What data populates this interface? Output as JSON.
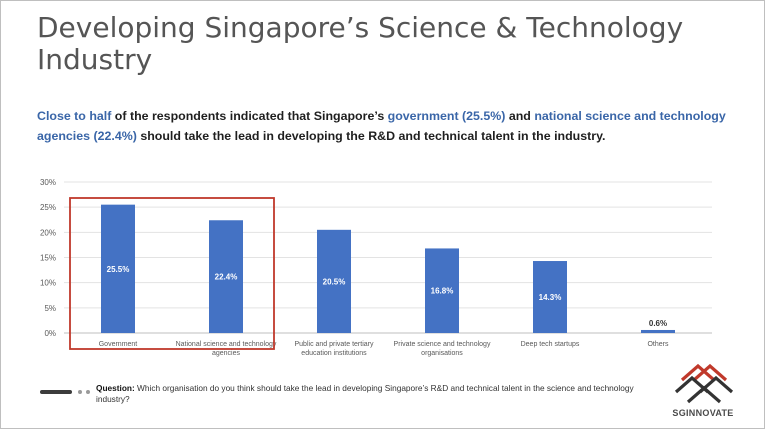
{
  "slide": {
    "title": "Developing Singapore’s Science & Technology Industry",
    "summary": {
      "part1": "Close to half",
      "part2": " of the respondents indicated that Singapore’s ",
      "part3": "government (25.5%)",
      "part4": " and ",
      "part5": "national science and technology agencies (22.4%)",
      "part6": " should take the lead in developing the R&D and technical talent in the industry."
    },
    "footer": {
      "question_label": "Question:",
      "question_text": " Which organisation do you think should take the lead in developing Singapore’s R&D and technical talent in the science and technology industry?"
    },
    "logo": {
      "name": "SGINNOVATE",
      "color": "#c0392b"
    }
  },
  "chart_data": {
    "type": "bar",
    "categories": [
      "Government",
      "National science and technology agencies",
      "Public and private tertiary education institutions",
      "Private science and technology organisations",
      "Deep tech startups",
      "Others"
    ],
    "category_lines": [
      [
        "Government"
      ],
      [
        "National science and technology",
        "agencies"
      ],
      [
        "Public and private tertiary",
        "education institutions"
      ],
      [
        "Private science and technology",
        "organisations"
      ],
      [
        "Deep tech startups"
      ],
      [
        "Others"
      ]
    ],
    "values": [
      25.5,
      22.4,
      20.5,
      16.8,
      14.3,
      0.6
    ],
    "data_labels": [
      "25.5%",
      "22.4%",
      "20.5%",
      "16.8%",
      "14.3%",
      "0.6%"
    ],
    "y_ticks": [
      "0%",
      "5%",
      "10%",
      "15%",
      "20%",
      "25%",
      "30%"
    ],
    "ylim": [
      0,
      30
    ],
    "grid": true,
    "bar_color": "#4472c4",
    "highlight_color": "#c0392b",
    "highlight_categories": [
      "Government",
      "National science and technology agencies"
    ]
  }
}
